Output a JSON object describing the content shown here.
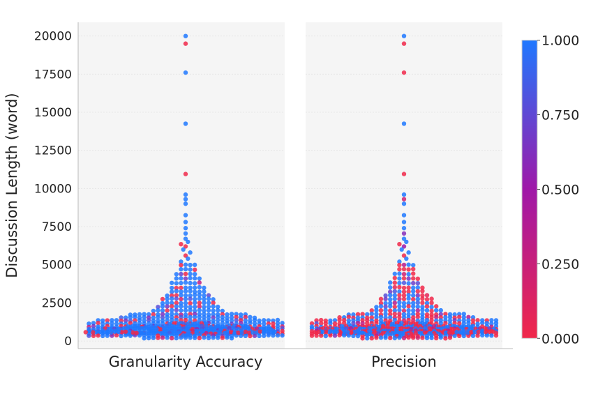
{
  "chart_data": {
    "type": "beeswarm",
    "categories": [
      "Granularity Accuracy",
      "Precision"
    ],
    "ylabel": "Discussion Length (word)",
    "xlabel": "",
    "ylim": [
      -500,
      20900
    ],
    "yticks": [
      0,
      2500,
      5000,
      7500,
      10000,
      12500,
      15000,
      17500,
      20000
    ],
    "ytick_labels": [
      "0",
      "2500",
      "5000",
      "7500",
      "10000",
      "12500",
      "15000",
      "17500",
      "20000"
    ],
    "grid": true,
    "colorbar": {
      "label": "",
      "range": [
        0.0,
        1.0
      ],
      "ticks": [
        "0.000",
        "0.250",
        "0.500",
        "0.750",
        "1.000"
      ],
      "low_color": "#f0284a",
      "mid_color": "#9f18a8",
      "high_color": "#1f78ff"
    },
    "outliers": {
      "lengths": [
        20000,
        19500,
        17600,
        14250,
        10950,
        9600,
        9300,
        9000,
        8250,
        7800,
        7400,
        7050,
        6700,
        6500,
        6350,
        6200,
        6000,
        5800,
        5600,
        5400,
        5200
      ],
      "granularity_accuracy": [
        1,
        0,
        1,
        1,
        0,
        1,
        1,
        1,
        1,
        1,
        1,
        1,
        1,
        1,
        0,
        0,
        1,
        1,
        0,
        1,
        1
      ],
      "precision": [
        1,
        0,
        0,
        1,
        0,
        1,
        0.2,
        1,
        1,
        1,
        1,
        0.6,
        1,
        1,
        0,
        0.5,
        1,
        1,
        0,
        1,
        1
      ]
    },
    "swarm_rows": {
      "lengths": [
        5000,
        4700,
        4400,
        4100,
        3800,
        3500,
        3250,
        3000,
        2750,
        2500,
        2250,
        2000,
        1750,
        1550,
        1350,
        1150,
        950,
        800,
        650,
        500,
        350,
        200
      ],
      "counts": [
        4,
        4,
        5,
        6,
        7,
        8,
        8,
        10,
        12,
        12,
        14,
        16,
        26,
        30,
        40,
        52,
        70,
        80,
        60,
        70,
        45,
        20
      ],
      "granularity_accuracy_share_of_1": 0.8,
      "precision_share_of_1": 0.55
    }
  }
}
